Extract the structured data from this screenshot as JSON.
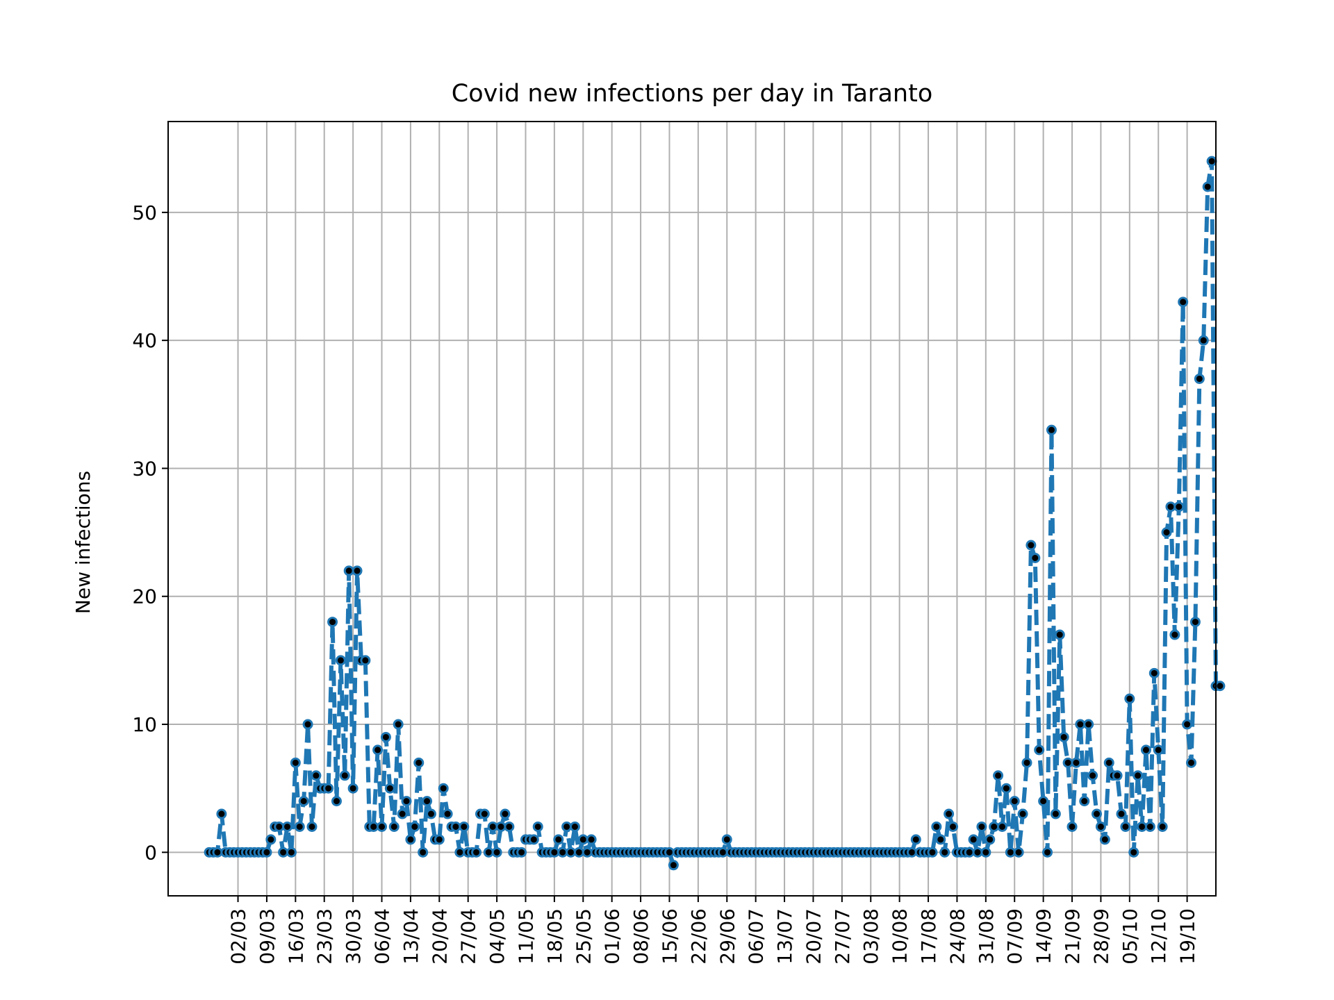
{
  "chart_data": {
    "type": "line",
    "title": "Covid new infections per day in Taranto",
    "ylabel": "New infections",
    "xlabel": "",
    "x_start": "2020-02-24",
    "x_tick_labels": [
      "02/03",
      "09/03",
      "16/03",
      "23/03",
      "30/03",
      "06/04",
      "13/04",
      "20/04",
      "27/04",
      "04/05",
      "11/05",
      "18/05",
      "25/05",
      "01/06",
      "08/06",
      "15/06",
      "22/06",
      "29/06",
      "06/07",
      "13/07",
      "20/07",
      "27/07",
      "03/08",
      "10/08",
      "17/08",
      "24/08",
      "31/08",
      "07/09",
      "14/09",
      "21/09",
      "28/09",
      "05/10",
      "12/10",
      "19/10"
    ],
    "y_ticks": [
      0,
      10,
      20,
      30,
      40,
      50
    ],
    "ylim": [
      -3.4,
      57.1
    ],
    "xlim": [
      "2020-02-14",
      "2020-10-26"
    ],
    "grid": true,
    "line_color": "#1f77b4",
    "marker_color": "#000000",
    "line_style": "dashed",
    "series": [
      {
        "values": [
          0,
          0,
          0,
          3,
          0,
          0,
          0,
          0,
          0,
          0,
          0,
          0,
          0,
          0,
          0,
          1,
          2,
          2,
          0,
          2,
          0,
          7,
          2,
          4,
          10,
          2,
          6,
          5,
          5,
          5,
          18,
          4,
          15,
          6,
          22,
          5,
          22,
          15,
          15,
          2,
          2,
          8,
          2,
          9,
          5,
          2,
          10,
          3,
          4,
          1,
          2,
          7,
          0,
          4,
          3,
          1,
          1,
          5,
          3,
          2,
          2,
          0,
          2,
          0,
          0,
          0,
          3,
          3,
          0,
          2,
          0,
          2,
          3,
          2,
          0,
          0,
          0,
          1,
          1,
          1,
          2,
          0,
          0,
          0,
          0,
          1,
          0,
          2,
          0,
          2,
          0,
          1,
          0,
          1,
          0,
          0,
          0,
          0,
          0,
          0,
          0,
          0,
          0,
          0,
          0,
          0,
          0,
          0,
          0,
          0,
          0,
          0,
          0,
          -1,
          0,
          0,
          0,
          0,
          0,
          0,
          0,
          0,
          0,
          0,
          0,
          0,
          1,
          0,
          0,
          0,
          0,
          0,
          0,
          0,
          0,
          0,
          0,
          0,
          0,
          0,
          0,
          0,
          0,
          0,
          0,
          0,
          0,
          0,
          0,
          0,
          0,
          0,
          0,
          0,
          0,
          0,
          0,
          0,
          0,
          0,
          0,
          0,
          0,
          0,
          0,
          0,
          0,
          0,
          0,
          0,
          0,
          0,
          1,
          0,
          0,
          0,
          0,
          2,
          1,
          0,
          3,
          2,
          0,
          0,
          0,
          0,
          1,
          0,
          2,
          0,
          1,
          2,
          6,
          2,
          5,
          0,
          4,
          0,
          3,
          7,
          24,
          23,
          8,
          4,
          0,
          33,
          3,
          17,
          9,
          7,
          2,
          7,
          10,
          4,
          10,
          6,
          3,
          2,
          1,
          7,
          6,
          6,
          3,
          2,
          12,
          0,
          6,
          2,
          8,
          2,
          14,
          8,
          2,
          25,
          27,
          17,
          27,
          43,
          10,
          7,
          18,
          37,
          40,
          52,
          54,
          13,
          13
        ]
      }
    ]
  }
}
